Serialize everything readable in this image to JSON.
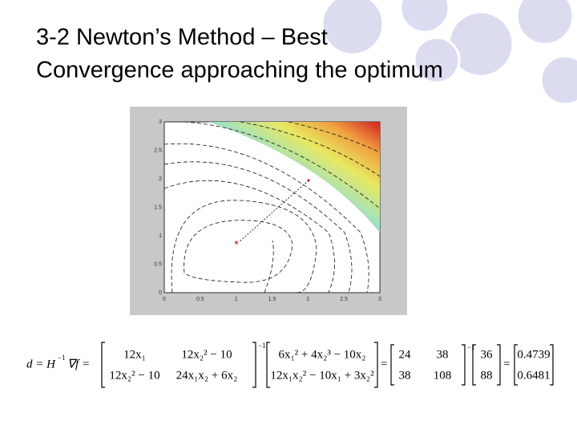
{
  "title": {
    "line1": "3-2 Newton’s Method – Best",
    "line2": "Convergence approaching the optimum"
  },
  "plot": {
    "xticks": [
      "0",
      "0.5",
      "1",
      "1.5",
      "2",
      "2.5",
      "3"
    ],
    "yticks": [
      "0",
      "0.5",
      "1",
      "1.5",
      "2",
      "2.5",
      "3"
    ],
    "start_marker": "*"
  },
  "equation": {
    "lhs": "d = H",
    "inverse": "−1",
    "grad": "∇f =",
    "hessian": [
      "12x₁",
      "12x₂² − 10",
      "12x₂² − 10",
      "24x₁x₂ + 6x₂"
    ],
    "gradient": [
      "6x₁² + 4x₂³ − 10x₂",
      "12x₁x₂² − 10x₁ + 3x₂²"
    ],
    "eq1": "=",
    "numeric_hessian": [
      "24",
      "38",
      "38",
      "108"
    ],
    "numeric_gradient": [
      "36",
      "88"
    ],
    "eq2": "=",
    "result": [
      "0.4739",
      "0.6481"
    ]
  }
}
